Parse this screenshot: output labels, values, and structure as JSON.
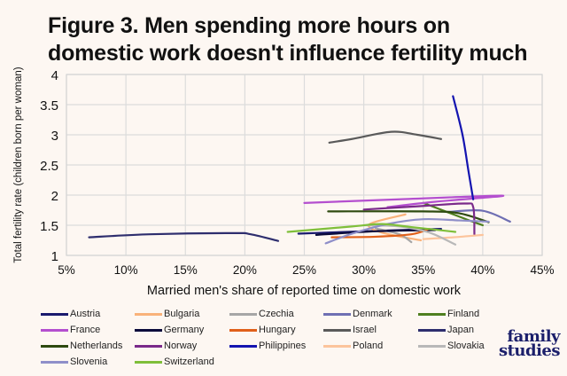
{
  "title": "Figure 3. Men spending more hours on domestic work doesn't influence fertility much",
  "brand": {
    "line1": "family",
    "line2": "studies",
    "color": "#1b1f6b"
  },
  "chart_data": {
    "type": "line",
    "title": "Figure 3. Men spending more hours on domestic work doesn't influence fertility much",
    "xlabel": "Married men's share of reported time on domestic work",
    "ylabel": "Total fertility rate (children born per woman)",
    "xlim": [
      5,
      45
    ],
    "ylim": [
      1,
      4
    ],
    "x_ticks": [
      "5%",
      "10%",
      "15%",
      "20%",
      "25%",
      "30%",
      "35%",
      "40%",
      "45%"
    ],
    "x_tick_values": [
      5,
      10,
      15,
      20,
      25,
      30,
      35,
      40,
      45
    ],
    "y_ticks": [
      "1",
      "1.5",
      "2",
      "2.5",
      "3",
      "3.5",
      "4"
    ],
    "y_tick_values": [
      1,
      1.5,
      2,
      2.5,
      3,
      3.5,
      4
    ],
    "grid": true,
    "legend_position": "bottom",
    "series": [
      {
        "name": "Austria",
        "color": "#1a1a6e",
        "points": [
          [
            24.5,
            1.36
          ],
          [
            30,
            1.4
          ],
          [
            36.5,
            1.44
          ]
        ]
      },
      {
        "name": "Bulgaria",
        "color": "#f9b27a",
        "points": [
          [
            34.8,
            1.25
          ],
          [
            31.5,
            1.38
          ],
          [
            30.5,
            1.52
          ],
          [
            33.5,
            1.68
          ]
        ]
      },
      {
        "name": "Czechia",
        "color": "#a6a6a6",
        "points": [
          [
            31,
            1.45
          ],
          [
            33,
            1.35
          ],
          [
            34,
            1.22
          ]
        ]
      },
      {
        "name": "Denmark",
        "color": "#6f6fb3",
        "points": [
          [
            37,
            1.72
          ],
          [
            40,
            1.74
          ],
          [
            42.3,
            1.56
          ]
        ]
      },
      {
        "name": "Finland",
        "color": "#4f7f1f",
        "points": [
          [
            35,
            1.87
          ],
          [
            37,
            1.72
          ],
          [
            39,
            1.57
          ],
          [
            40,
            1.5
          ]
        ]
      },
      {
        "name": "France",
        "color": "#b44fcf",
        "points": [
          [
            25,
            1.87
          ],
          [
            33,
            1.93
          ],
          [
            41.7,
            1.99
          ],
          [
            36,
            1.89
          ],
          [
            32,
            1.8
          ]
        ]
      },
      {
        "name": "Germany",
        "color": "#0b0b3b",
        "points": [
          [
            26,
            1.34
          ],
          [
            31,
            1.4
          ],
          [
            36,
            1.42
          ]
        ]
      },
      {
        "name": "Hungary",
        "color": "#e0601a",
        "points": [
          [
            27.3,
            1.3
          ],
          [
            31,
            1.31
          ],
          [
            34,
            1.35
          ],
          [
            35.5,
            1.44
          ]
        ]
      },
      {
        "name": "Israel",
        "color": "#5a5a5a",
        "points": [
          [
            27.1,
            2.87
          ],
          [
            29,
            2.93
          ],
          [
            32.3,
            3.05
          ],
          [
            34.5,
            3.0
          ],
          [
            36.5,
            2.93
          ]
        ]
      },
      {
        "name": "Japan",
        "color": "#2e2e6e",
        "points": [
          [
            6.9,
            1.3
          ],
          [
            12,
            1.35
          ],
          [
            19,
            1.37
          ],
          [
            20.5,
            1.35
          ],
          [
            22.8,
            1.24
          ]
        ]
      },
      {
        "name": "Netherlands",
        "color": "#2e4a10",
        "points": [
          [
            27,
            1.73
          ],
          [
            35,
            1.73
          ],
          [
            38,
            1.7
          ],
          [
            40.5,
            1.55
          ]
        ]
      },
      {
        "name": "Norway",
        "color": "#7a2a8a",
        "points": [
          [
            30,
            1.76
          ],
          [
            35,
            1.82
          ],
          [
            38.5,
            1.86
          ],
          [
            39.2,
            1.8
          ],
          [
            39.3,
            1.35
          ]
        ]
      },
      {
        "name": "Philippines",
        "color": "#1414b0",
        "points": [
          [
            37.5,
            3.64
          ],
          [
            38.3,
            3.0
          ],
          [
            38.8,
            2.4
          ],
          [
            39.2,
            1.93
          ]
        ]
      },
      {
        "name": "Poland",
        "color": "#fcc49c",
        "points": [
          [
            35,
            1.27
          ],
          [
            37.5,
            1.3
          ],
          [
            40,
            1.34
          ]
        ]
      },
      {
        "name": "Slovakia",
        "color": "#b8b8b8",
        "points": [
          [
            30,
            1.5
          ],
          [
            33,
            1.48
          ],
          [
            35.5,
            1.38
          ],
          [
            37.7,
            1.18
          ]
        ]
      },
      {
        "name": "Slovenia",
        "color": "#8f8fc9",
        "points": [
          [
            26.8,
            1.2
          ],
          [
            29,
            1.36
          ],
          [
            32,
            1.52
          ],
          [
            35,
            1.6
          ],
          [
            38,
            1.58
          ],
          [
            40.5,
            1.56
          ]
        ]
      },
      {
        "name": "Switzerland",
        "color": "#7fbf3a",
        "points": [
          [
            23.6,
            1.39
          ],
          [
            29,
            1.48
          ],
          [
            31.5,
            1.52
          ],
          [
            34,
            1.47
          ],
          [
            37.7,
            1.39
          ]
        ]
      }
    ]
  }
}
